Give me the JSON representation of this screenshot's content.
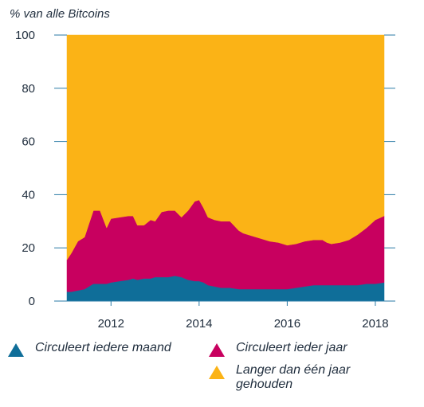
{
  "chart_data": {
    "type": "area",
    "stacked": true,
    "ylabel": "% van alle Bitcoins",
    "ylim": [
      0,
      100
    ],
    "yticks": [
      0,
      20,
      40,
      60,
      80,
      100
    ],
    "xlim": [
      2011.0,
      2018.2
    ],
    "xticks": [
      2012,
      2014,
      2016,
      2018
    ],
    "grid": false,
    "legend_position": "bottom",
    "x": [
      2011.0,
      2011.1,
      2011.25,
      2011.4,
      2011.5,
      2011.6,
      2011.75,
      2011.9,
      2012.0,
      2012.2,
      2012.4,
      2012.5,
      2012.6,
      2012.75,
      2012.9,
      2013.0,
      2013.15,
      2013.3,
      2013.45,
      2013.6,
      2013.75,
      2013.9,
      2014.0,
      2014.1,
      2014.2,
      2014.35,
      2014.5,
      2014.7,
      2014.9,
      2015.0,
      2015.2,
      2015.4,
      2015.6,
      2015.8,
      2015.9,
      2016.0,
      2016.2,
      2016.4,
      2016.6,
      2016.8,
      2016.9,
      2017.0,
      2017.2,
      2017.4,
      2017.6,
      2017.8,
      2018.0,
      2018.2
    ],
    "series": [
      {
        "name": "Circuleert iedere maand",
        "color": "#0f6e99",
        "values": [
          3.5,
          3.5,
          4,
          4.5,
          5.5,
          6.5,
          6.5,
          6.5,
          7,
          7.5,
          8,
          8.5,
          8,
          8.5,
          8.5,
          9,
          9,
          9,
          9.5,
          9,
          8,
          7.5,
          7.5,
          7,
          6,
          5.5,
          5,
          5,
          4.5,
          4.5,
          4.5,
          4.5,
          4.5,
          4.5,
          4.5,
          4.5,
          5,
          5.5,
          6,
          6,
          6,
          6,
          6,
          6,
          6,
          6.5,
          6.5,
          7
        ]
      },
      {
        "name": "Circuleert ieder jaar",
        "color": "#c8005f",
        "values": [
          12,
          14.5,
          18.5,
          19.5,
          23.5,
          27.5,
          27.5,
          21,
          24,
          24,
          24,
          23.5,
          20.5,
          20,
          22,
          21,
          24.5,
          25,
          24.5,
          22.5,
          26,
          30,
          30.5,
          28,
          25.5,
          25,
          25,
          25,
          22,
          21,
          20,
          19,
          18,
          17.5,
          17,
          16.5,
          16.5,
          17,
          17,
          17,
          16,
          15.5,
          16,
          17,
          19,
          21,
          24,
          25
        ]
      },
      {
        "name": "Langer dan één jaar gehouden",
        "color": "#fbb316",
        "values": [
          84.5,
          82,
          77.5,
          76,
          71,
          66,
          66,
          72.5,
          69,
          68.5,
          68,
          68,
          71.5,
          71.5,
          69.5,
          70,
          66.5,
          66,
          66,
          68.5,
          66,
          62.5,
          62,
          65,
          68.5,
          69.5,
          70,
          70,
          73.5,
          74.5,
          75.5,
          76.5,
          77.5,
          78,
          78.5,
          79,
          78.5,
          77.5,
          77,
          77,
          78,
          78.5,
          78,
          77,
          75,
          72.5,
          69.5,
          68
        ]
      }
    ]
  }
}
